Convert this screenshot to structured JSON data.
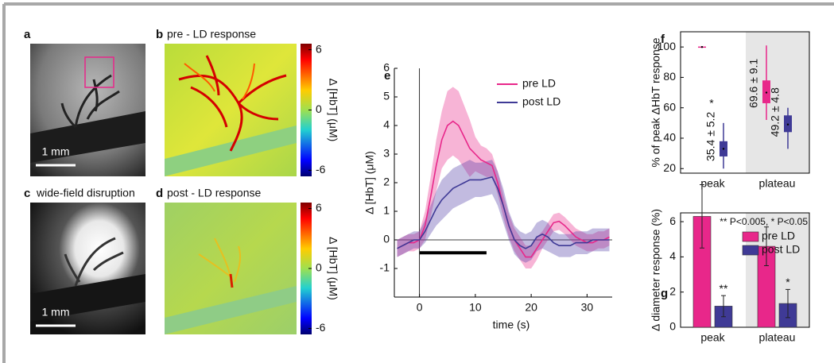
{
  "panels": [
    {
      "letter": "a"
    },
    {
      "letter": "b",
      "title": "pre - LD response"
    },
    {
      "letter": "c",
      "title": "wide-field disruption"
    },
    {
      "letter": "d",
      "title": "post - LD response"
    }
  ],
  "scale_bar": "1 mm",
  "colorbar": {
    "clim": [
      -6.6,
      6.6
    ],
    "ticks": [
      6,
      0,
      -6
    ],
    "label": "Δ [HbT] (μM)"
  },
  "chart_data": [
    {
      "letter": "e",
      "type": "line",
      "xlabel": "time (s)",
      "ylabel": "Δ [HbT] (μM)",
      "x": [
        -4,
        -3,
        -2,
        -1,
        0,
        1,
        2,
        3,
        4,
        5,
        6,
        7,
        8,
        9,
        10,
        11,
        12,
        13,
        14,
        15,
        16,
        17,
        18,
        19,
        20,
        21,
        22,
        23,
        24,
        25,
        26,
        27,
        28,
        29,
        30,
        31,
        32,
        33,
        34
      ],
      "xlim": [
        -4.5,
        34.5
      ],
      "xticks": [
        0,
        10,
        20,
        30
      ],
      "ylim": [
        -2,
        6
      ],
      "yticks": [
        6,
        5,
        4,
        3,
        2,
        1,
        0,
        -1
      ],
      "legend": "upper right",
      "stimulus": {
        "x": [
          0,
          12
        ],
        "y": -0.45
      },
      "series": [
        {
          "name": "pre LD",
          "color": "#e8278a",
          "values": [
            -0.3,
            -0.2,
            -0.1,
            -0.1,
            0,
            0.5,
            1.5,
            2.6,
            3.5,
            4.0,
            4.15,
            4.0,
            3.6,
            3.2,
            3.0,
            2.8,
            2.7,
            2.6,
            2.0,
            1.2,
            0.5,
            0.0,
            -0.3,
            -0.6,
            -0.6,
            -0.3,
            0.0,
            0.3,
            0.6,
            0.65,
            0.5,
            0.3,
            0.1,
            0.0,
            -0.1,
            -0.1,
            0,
            0,
            0.1
          ],
          "errors": [
            0.3,
            0.3,
            0.3,
            0.3,
            0.3,
            0.5,
            0.7,
            0.9,
            1.0,
            1.2,
            1.2,
            1.2,
            1.1,
            1.0,
            0.6,
            0.5,
            0.5,
            0.4,
            0.4,
            0.4,
            0.4,
            0.4,
            0.4,
            0.4,
            0.4,
            0.4,
            0.3,
            0.3,
            0.3,
            0.3,
            0.3,
            0.3,
            0.3,
            0.3,
            0.3,
            0.3,
            0.3,
            0.3,
            0.3
          ]
        },
        {
          "name": "post LD",
          "color": "#3f3a96",
          "values": [
            -0.3,
            -0.2,
            -0.1,
            0,
            0,
            0.3,
            0.7,
            1.1,
            1.4,
            1.6,
            1.8,
            1.9,
            2.0,
            2.1,
            2.1,
            2.1,
            2.15,
            2.2,
            1.8,
            1.2,
            0.5,
            0.0,
            -0.2,
            -0.3,
            -0.2,
            0.1,
            0.2,
            0.1,
            -0.1,
            -0.2,
            -0.2,
            -0.2,
            -0.1,
            -0.1,
            -0.1,
            0,
            0,
            0,
            0
          ],
          "errors": [
            0.3,
            0.3,
            0.3,
            0.3,
            0.3,
            0.4,
            0.5,
            0.6,
            0.7,
            0.7,
            0.7,
            0.7,
            0.7,
            0.7,
            0.6,
            0.6,
            0.6,
            0.6,
            0.6,
            0.6,
            0.5,
            0.5,
            0.5,
            0.5,
            0.5,
            0.5,
            0.5,
            0.5,
            0.4,
            0.4,
            0.4,
            0.4,
            0.4,
            0.4,
            0.4,
            0.4,
            0.4,
            0.4,
            0.4
          ]
        }
      ]
    },
    {
      "letter": "f",
      "type": "box",
      "ylabel": "% of peak ΔHbT response",
      "categories": [
        "peak",
        "plateau"
      ],
      "ylim": [
        17,
        110
      ],
      "yticks": [
        20,
        40,
        60,
        80,
        100
      ],
      "series": [
        {
          "color": "#e8278a",
          "boxes": [
            {
              "whisker_low": 99.4,
              "q1": 99.7,
              "median": 100,
              "q3": 100.3,
              "whisker_high": 100.6
            },
            {
              "whisker_low": 52,
              "q1": 63,
              "median": 70,
              "q3": 78,
              "whisker_high": 101
            }
          ],
          "labels": [
            null,
            "69.6 ± 9.1"
          ]
        },
        {
          "color": "#3f3a96",
          "boxes": [
            {
              "whisker_low": 20,
              "q1": 28,
              "median": 33,
              "q3": 38,
              "whisker_high": 50
            },
            {
              "whisker_low": 33,
              "q1": 44,
              "median": 49,
              "q3": 55,
              "whisker_high": 60
            }
          ],
          "labels": [
            "35.4 ± 5.2",
            "49.2 ± 4.8"
          ],
          "stars": [
            "*",
            null
          ]
        }
      ]
    },
    {
      "letter": "g",
      "type": "bar",
      "ylabel": "Δ diameter response (%)",
      "categories": [
        "peak",
        "plateau"
      ],
      "ylim": [
        0,
        6.5
      ],
      "yticks": [
        0,
        2,
        4,
        6
      ],
      "annotation": "** P<0.005, * P<0.05",
      "legend": "upper right",
      "series": [
        {
          "name": "pre LD",
          "color": "#e8278a",
          "values": [
            6.3,
            4.6
          ],
          "errors": [
            1.8,
            1.1
          ]
        },
        {
          "name": "post LD",
          "color": "#3f3a96",
          "values": [
            1.2,
            1.35
          ],
          "errors": [
            0.6,
            0.8
          ],
          "stars": [
            "**",
            "*"
          ]
        }
      ]
    }
  ]
}
